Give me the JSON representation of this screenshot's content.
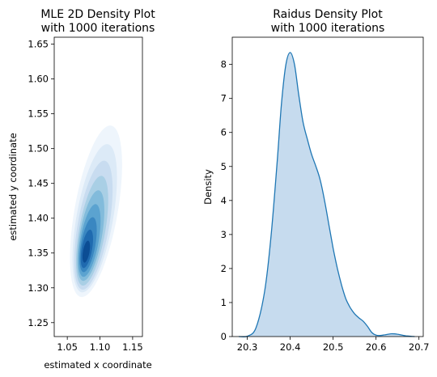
{
  "chart_data": [
    {
      "type": "kde2d",
      "title_lines": [
        "MLE 2D Density Plot",
        "with 1000 iterations"
      ],
      "xlabel": "estimated x coordinate",
      "ylabel": "estimated y coordinate",
      "xlim": [
        1.03,
        1.165
      ],
      "ylim": [
        1.23,
        1.66
      ],
      "xticks": [
        1.05,
        1.1,
        1.15
      ],
      "xtick_labels": [
        "1.05",
        "1.10",
        "1.15"
      ],
      "yticks": [
        1.25,
        1.3,
        1.35,
        1.4,
        1.45,
        1.5,
        1.55,
        1.6,
        1.65
      ],
      "ytick_labels": [
        "1.25",
        "1.30",
        "1.35",
        "1.40",
        "1.45",
        "1.50",
        "1.55",
        "1.60",
        "1.65"
      ],
      "center": [
        1.079,
        1.352
      ],
      "colormap": "Blues",
      "levels": [
        {
          "cx": 1.094,
          "cy": 1.41,
          "rx": 0.033,
          "ry": 0.125,
          "color": "#eef5fc"
        },
        {
          "cx": 1.092,
          "cy": 1.4,
          "rx": 0.028,
          "ry": 0.108,
          "color": "#dceaf7"
        },
        {
          "cx": 1.09,
          "cy": 1.39,
          "rx": 0.024,
          "ry": 0.094,
          "color": "#c8dcf0"
        },
        {
          "cx": 1.088,
          "cy": 1.382,
          "rx": 0.02,
          "ry": 0.08,
          "color": "#a9cfe5"
        },
        {
          "cx": 1.086,
          "cy": 1.375,
          "rx": 0.017,
          "ry": 0.066,
          "color": "#82bbdb"
        },
        {
          "cx": 1.084,
          "cy": 1.368,
          "rx": 0.014,
          "ry": 0.053,
          "color": "#5ba3d0"
        },
        {
          "cx": 1.082,
          "cy": 1.362,
          "rx": 0.011,
          "ry": 0.04,
          "color": "#3a87c1"
        },
        {
          "cx": 1.08,
          "cy": 1.356,
          "rx": 0.008,
          "ry": 0.028,
          "color": "#1f6aaf"
        },
        {
          "cx": 1.079,
          "cy": 1.352,
          "rx": 0.005,
          "ry": 0.016,
          "color": "#0b4d94"
        }
      ]
    },
    {
      "type": "area",
      "title_lines": [
        "Raidus Density Plot",
        "with 1000 iterations"
      ],
      "xlabel": "",
      "ylabel": "Density",
      "xlim": [
        20.265,
        20.71
      ],
      "ylim": [
        0,
        8.8
      ],
      "xticks": [
        20.3,
        20.4,
        20.5,
        20.6,
        20.7
      ],
      "xtick_labels": [
        "20.3",
        "20.4",
        "20.5",
        "20.6",
        "20.7"
      ],
      "yticks": [
        0,
        1,
        2,
        3,
        4,
        5,
        6,
        7,
        8
      ],
      "ytick_labels": [
        "0",
        "1",
        "2",
        "3",
        "4",
        "5",
        "6",
        "7",
        "8"
      ],
      "line_color": "#1f77b4",
      "fill_color": "#c6dbee",
      "x": [
        20.28,
        20.3,
        20.32,
        20.34,
        20.355,
        20.37,
        20.38,
        20.39,
        20.4,
        20.41,
        20.42,
        20.43,
        20.44,
        20.45,
        20.46,
        20.47,
        20.48,
        20.49,
        20.5,
        20.51,
        20.52,
        20.53,
        20.54,
        20.55,
        20.56,
        20.57,
        20.58,
        20.59,
        20.6,
        20.61,
        20.62,
        20.635,
        20.65,
        20.67,
        20.69
      ],
      "y": [
        0.0,
        0.01,
        0.25,
        1.3,
        2.9,
        5.2,
        6.9,
        8.0,
        8.35,
        8.0,
        7.1,
        6.3,
        5.8,
        5.35,
        5.0,
        4.6,
        4.0,
        3.3,
        2.6,
        2.0,
        1.5,
        1.1,
        0.85,
        0.67,
        0.55,
        0.45,
        0.3,
        0.12,
        0.04,
        0.03,
        0.05,
        0.08,
        0.07,
        0.02,
        0.0
      ]
    }
  ]
}
